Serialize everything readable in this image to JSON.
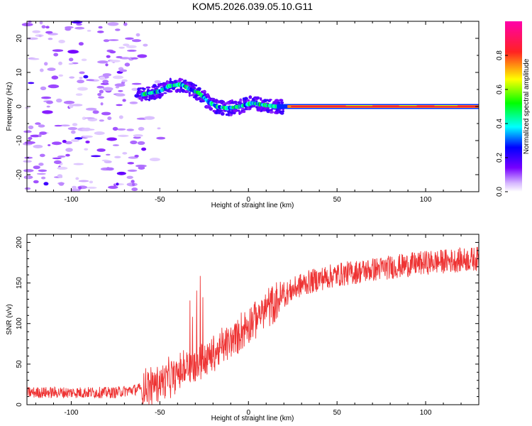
{
  "title": "KOM5.2026.039.05.10.G11",
  "chart_data": [
    {
      "type": "heatmap",
      "xlabel": "Height of straight line (km)",
      "ylabel": "Frequency (Hz)",
      "xlim": [
        -125,
        130
      ],
      "ylim": [
        -25,
        25
      ],
      "xticks": [
        -100,
        -50,
        0,
        50,
        100
      ],
      "yticks": [
        -20,
        -10,
        0,
        10,
        20
      ],
      "colorbar": {
        "label": "Normalized spectral amplitude",
        "range": [
          0,
          1
        ],
        "ticks": [
          0.0,
          0.2,
          0.4,
          0.6,
          0.8
        ]
      },
      "ridge": [
        {
          "x": -60,
          "freq": 3.5
        },
        {
          "x": -50,
          "freq": 4.5
        },
        {
          "x": -45,
          "freq": 6
        },
        {
          "x": -38,
          "freq": 6.5
        },
        {
          "x": -33,
          "freq": 5
        },
        {
          "x": -28,
          "freq": 4
        },
        {
          "x": -23,
          "freq": 1.5
        },
        {
          "x": -18,
          "freq": 0
        },
        {
          "x": -12,
          "freq": -0.5
        },
        {
          "x": -5,
          "freq": 0
        },
        {
          "x": 2,
          "freq": 1
        },
        {
          "x": 8,
          "freq": 0.5
        },
        {
          "x": 15,
          "freq": 0
        },
        {
          "x": 130,
          "freq": 0
        }
      ]
    },
    {
      "type": "line",
      "xlabel": "Height of straight line (km)",
      "ylabel": "SNR (v/v)",
      "xlim": [
        -125,
        130
      ],
      "ylim": [
        0,
        210
      ],
      "xticks": [
        -100,
        -50,
        0,
        50,
        100
      ],
      "yticks": [
        0,
        50,
        100,
        150,
        200
      ],
      "series": [
        {
          "name": "SNR",
          "color": "#ee3333",
          "trend": [
            {
              "x": -125,
              "y": 15
            },
            {
              "x": -100,
              "y": 15
            },
            {
              "x": -75,
              "y": 15
            },
            {
              "x": -60,
              "y": 20
            },
            {
              "x": -50,
              "y": 28
            },
            {
              "x": -40,
              "y": 38
            },
            {
              "x": -30,
              "y": 50
            },
            {
              "x": -20,
              "y": 62
            },
            {
              "x": -10,
              "y": 78
            },
            {
              "x": 0,
              "y": 100
            },
            {
              "x": 10,
              "y": 118
            },
            {
              "x": 20,
              "y": 135
            },
            {
              "x": 30,
              "y": 148
            },
            {
              "x": 40,
              "y": 155
            },
            {
              "x": 50,
              "y": 160
            },
            {
              "x": 75,
              "y": 168
            },
            {
              "x": 100,
              "y": 175
            },
            {
              "x": 130,
              "y": 180
            }
          ]
        }
      ]
    }
  ]
}
